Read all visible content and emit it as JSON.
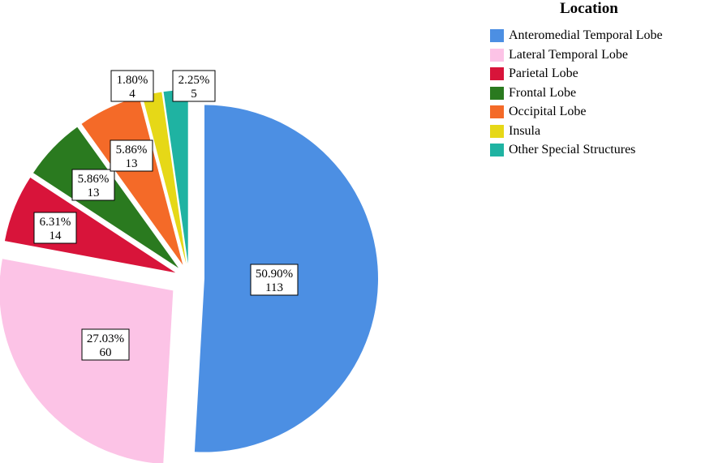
{
  "chart_data": {
    "type": "pie",
    "legend_title": "Location",
    "legend_position": "top-right",
    "slices": [
      {
        "label": "Anteromedial Temporal Lobe",
        "value": 113,
        "percent": "50.90%",
        "color": "#4c8fe3"
      },
      {
        "label": "Lateral Temporal Lobe",
        "value": 60,
        "percent": "27.03%",
        "color": "#fcc3e6"
      },
      {
        "label": "Parietal Lobe",
        "value": 14,
        "percent": "6.31%",
        "color": "#d8143a"
      },
      {
        "label": "Frontal Lobe",
        "value": 13,
        "percent": "5.86%",
        "color": "#2a7a1f"
      },
      {
        "label": "Occipital Lobe",
        "value": 13,
        "percent": "5.86%",
        "color": "#f46a28"
      },
      {
        "label": "Insula",
        "value": 4,
        "percent": "1.80%",
        "color": "#e6d817"
      },
      {
        "label": "Other Special Structures",
        "value": 5,
        "percent": "2.25%",
        "color": "#1fb3a2"
      }
    ]
  }
}
